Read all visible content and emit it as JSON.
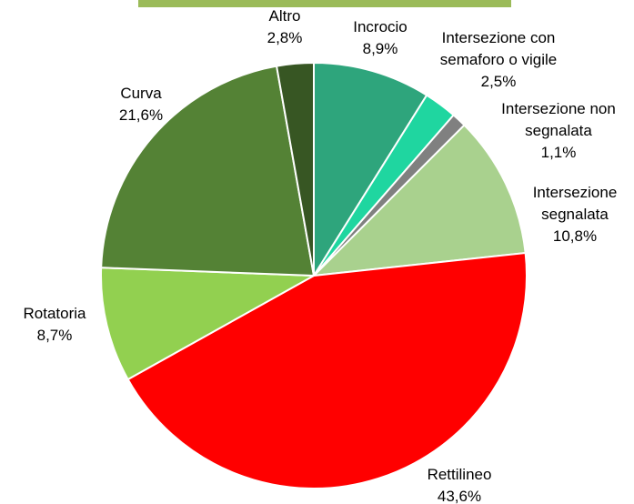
{
  "chart_data": {
    "type": "pie",
    "categories": [
      "Incrocio",
      "Intersezione con semaforo o vigile",
      "Intersezione non segnalata",
      "Intersezione segnalata",
      "Rettilineo",
      "Rotatoria",
      "Curva",
      "Altro"
    ],
    "values": [
      8.9,
      2.5,
      1.1,
      10.8,
      43.6,
      8.7,
      21.6,
      2.8
    ],
    "value_labels": [
      "8,9%",
      "2,5%",
      "1,1%",
      "10,8%",
      "43,6%",
      "8,7%",
      "21,6%",
      "2,8%"
    ],
    "colors": [
      "#2ea57c",
      "#1fd6a0",
      "#808080",
      "#a9d18e",
      "#ff0000",
      "#92d050",
      "#548235",
      "#375623"
    ]
  }
}
